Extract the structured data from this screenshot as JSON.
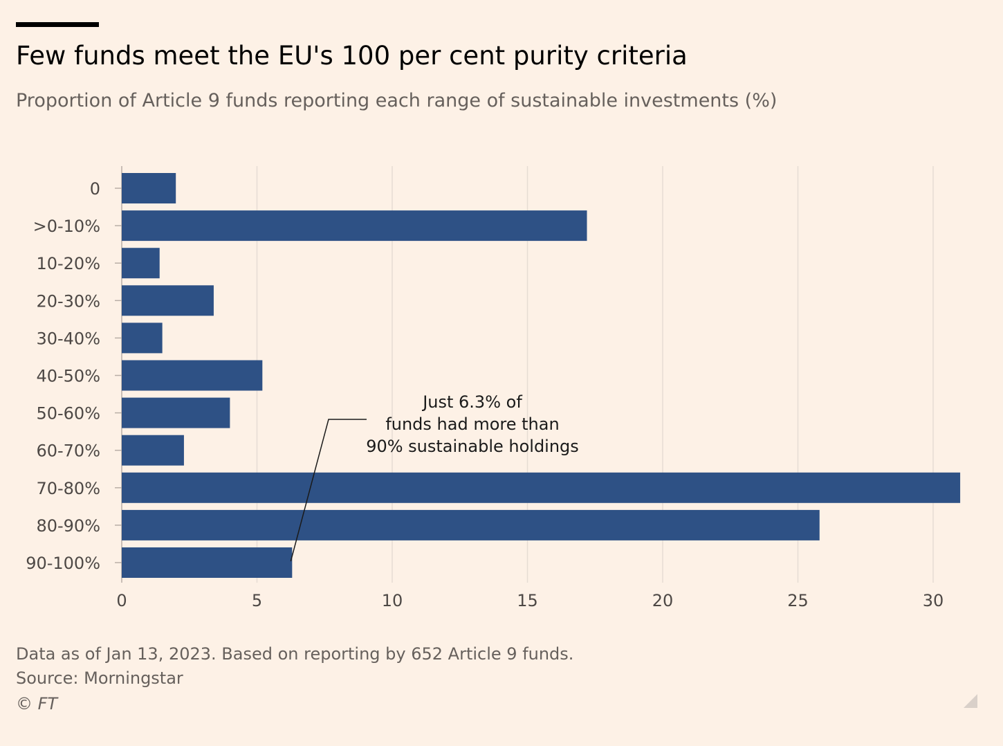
{
  "header": {
    "title": "Few funds meet the EU's 100 per cent purity criteria",
    "subtitle": "Proportion of Article 9 funds reporting each range of sustainable investments (%)"
  },
  "footer": {
    "note": "Data as of Jan 13, 2023. Based on reporting by 652 Article 9 funds.",
    "source": "Source: Morningstar",
    "copyright": "© FT"
  },
  "annotation": {
    "lines": [
      "Just 6.3% of",
      "funds had more than",
      "90% sustainable holdings"
    ],
    "target_category": "90-100%"
  },
  "colors": {
    "bar": "#2e5185",
    "background": "#fdf1e6",
    "grid": "#e6dcd3"
  },
  "chart_data": {
    "type": "bar",
    "orientation": "horizontal",
    "categories": [
      "0",
      ">0-10%",
      "10-20%",
      "20-30%",
      "30-40%",
      "40-50%",
      "50-60%",
      "60-70%",
      "70-80%",
      "80-90%",
      "90-100%"
    ],
    "values": [
      2.0,
      17.2,
      1.4,
      3.4,
      1.5,
      5.2,
      4.0,
      2.3,
      31.0,
      25.8,
      6.3
    ],
    "xticks": [
      0,
      5,
      10,
      15,
      20,
      25,
      30
    ],
    "xlim": [
      0,
      31.6
    ],
    "grid": true,
    "title": "Few funds meet the EU's 100 per cent purity criteria",
    "xlabel": "",
    "ylabel": ""
  }
}
